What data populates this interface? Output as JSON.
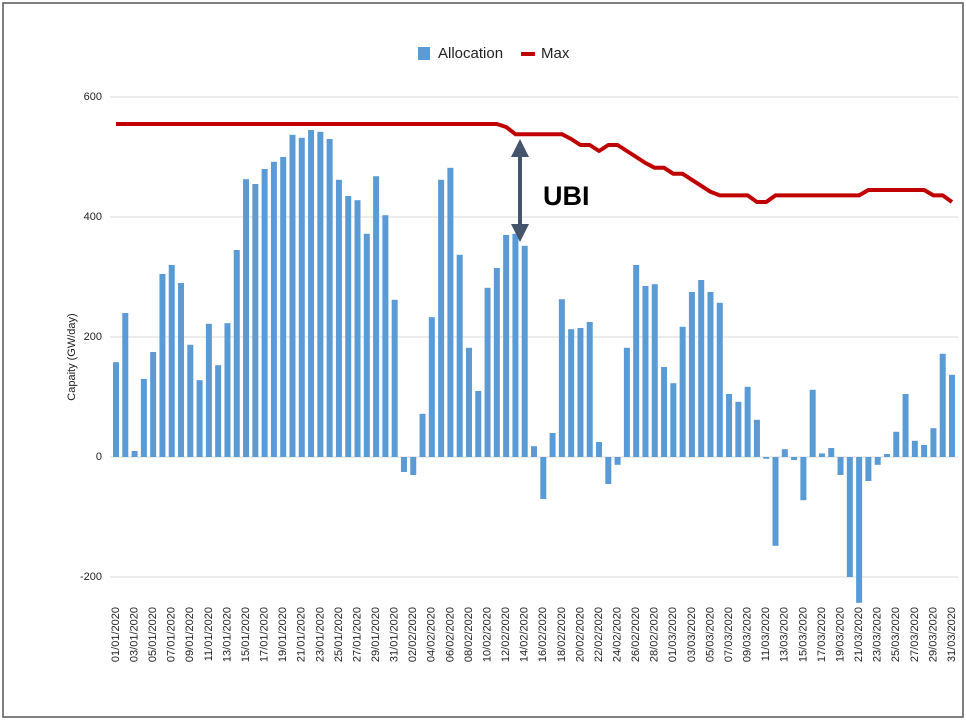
{
  "chart_data": {
    "type": "bar",
    "ylabel": "Capaity (GW/day)",
    "annotation": "UBI",
    "categories": [
      "01/01/2020",
      null,
      "03/01/2020",
      null,
      "05/01/2020",
      null,
      "07/01/2020",
      null,
      "09/01/2020",
      null,
      "11/01/2020",
      null,
      "13/01/2020",
      null,
      "15/01/2020",
      null,
      "17/01/2020",
      null,
      "19/01/2020",
      null,
      "21/01/2020",
      null,
      "23/01/2020",
      null,
      "25/01/2020",
      null,
      "27/01/2020",
      null,
      "29/01/2020",
      null,
      "31/01/2020",
      null,
      "02/02/2020",
      null,
      "04/02/2020",
      null,
      "06/02/2020",
      null,
      "08/02/2020",
      null,
      "10/02/2020",
      null,
      "12/02/2020",
      null,
      "14/02/2020",
      null,
      "16/02/2020",
      null,
      "18/02/2020",
      null,
      "20/02/2020",
      null,
      "22/02/2020",
      null,
      "24/02/2020",
      null,
      "26/02/2020",
      null,
      "28/02/2020",
      null,
      "01/03/2020",
      null,
      "03/03/2020",
      null,
      "05/03/2020",
      null,
      "07/03/2020",
      null,
      "09/03/2020",
      null,
      "11/03/2020",
      null,
      "13/03/2020",
      null,
      "15/03/2020",
      null,
      "17/03/2020",
      null,
      "19/03/2020",
      null,
      "21/03/2020",
      null,
      "23/03/2020",
      null,
      "25/03/2020",
      null,
      "27/03/2020",
      null,
      "29/03/2020",
      null,
      "31/03/2020"
    ],
    "series": [
      {
        "name": "Allocation",
        "color": "#5b9bd5",
        "values": [
          158,
          240,
          10,
          130,
          175,
          305,
          320,
          290,
          187,
          128,
          222,
          153,
          223,
          345,
          463,
          455,
          480,
          492,
          500,
          537,
          532,
          545,
          542,
          530,
          462,
          435,
          428,
          372,
          468,
          403,
          262,
          -25,
          -30,
          72,
          233,
          462,
          482,
          337,
          182,
          110,
          282,
          315,
          370,
          372,
          352,
          18,
          -70,
          40,
          263,
          213,
          215,
          225,
          25,
          -45,
          -13,
          182,
          320,
          285,
          288,
          150,
          123,
          217,
          275,
          295,
          275,
          257,
          105,
          92,
          117,
          62,
          -3,
          -148,
          13,
          -5,
          -72,
          112,
          6,
          15,
          -30,
          -200,
          -243,
          -40,
          -13,
          5,
          42,
          105,
          27,
          20,
          48,
          172,
          137
        ]
      },
      {
        "name": "Max",
        "type": "line",
        "color": "#c00000",
        "values": [
          555,
          555,
          555,
          555,
          555,
          555,
          555,
          555,
          555,
          555,
          555,
          555,
          555,
          555,
          555,
          555,
          555,
          555,
          555,
          555,
          555,
          555,
          555,
          555,
          555,
          555,
          555,
          555,
          555,
          555,
          555,
          555,
          555,
          555,
          555,
          555,
          555,
          555,
          555,
          555,
          555,
          555,
          550,
          538,
          538,
          538,
          538,
          538,
          538,
          530,
          520,
          520,
          510,
          520,
          520,
          510,
          500,
          490,
          482,
          482,
          472,
          472,
          462,
          452,
          442,
          436,
          436,
          436,
          436,
          425,
          425,
          436,
          436,
          436,
          436,
          436,
          436,
          436,
          436,
          436,
          436,
          445,
          445,
          445,
          445,
          445,
          445,
          445,
          436,
          436,
          425
        ]
      }
    ],
    "ylim": [
      -250,
      600
    ],
    "yticks": [
      -200,
      0,
      200,
      400,
      600
    ],
    "grid": true
  }
}
